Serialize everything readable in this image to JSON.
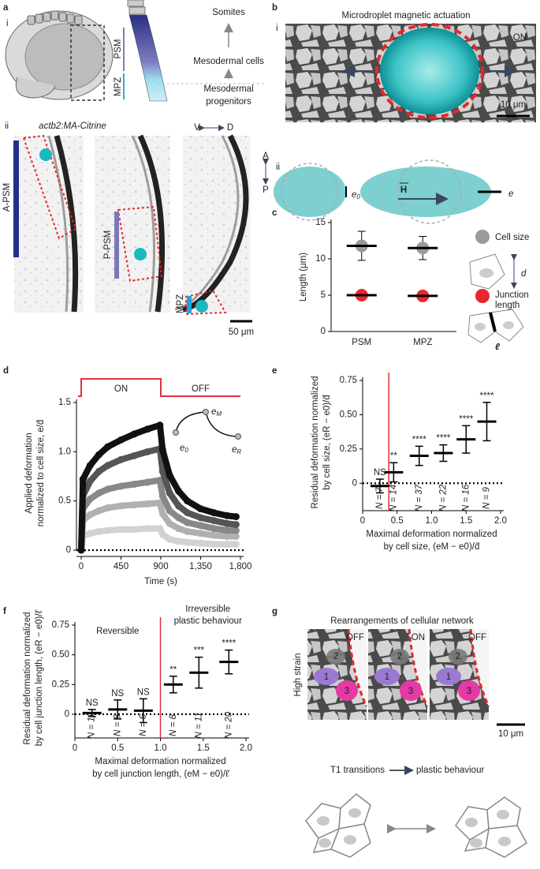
{
  "panel_a": {
    "label": "a",
    "sub_i": "i",
    "psm": "PSM",
    "mpz": "MPZ",
    "somites": "Somites",
    "mesodermal_cells": "Mesodermal cells",
    "progenitors": [
      "Mesodermal",
      "progenitors"
    ],
    "sub_ii": "ii",
    "transgene": "actb2:MA-Citrine",
    "axis_vd": [
      "V",
      "D"
    ],
    "axis_ap": [
      "A",
      "P"
    ],
    "regions": [
      "A-PSM",
      "P-PSM",
      "MPZ"
    ],
    "scale": "50 μm"
  },
  "panel_b": {
    "label": "b",
    "title": "Microdroplet magnetic actuation",
    "sub_i": "i",
    "state": "ON",
    "scale": "10 μm",
    "sub_ii": "ii",
    "e0": {
      "base": "e",
      "sub": "0"
    },
    "field": "H",
    "e": "e"
  },
  "panel_g": {
    "label": "g",
    "title": "Rearrangements of cellular network",
    "states": [
      "OFF",
      "ON",
      "OFF"
    ],
    "strain": "High strain",
    "cells": [
      "2",
      "1",
      "3"
    ],
    "scale": "10 μm",
    "t1": "T1 transitions",
    "result": "plastic behaviour"
  },
  "chart_data": [
    {
      "panel_label": "c",
      "type": "dot",
      "y_label": "Length (μm)",
      "categories": [
        "PSM",
        "MPZ"
      ],
      "series": [
        {
          "name": "Cell size",
          "color": "#9a9a9a",
          "values": [
            11.8,
            11.5
          ],
          "errors": [
            2.0,
            1.6
          ]
        },
        {
          "name": "Junction length",
          "color": "#e8262b",
          "values": [
            5.0,
            4.9
          ],
          "errors": [
            0.4,
            0.4
          ]
        }
      ],
      "legend_symbols": [
        "d",
        "ℓ"
      ],
      "ylim": [
        0,
        15
      ],
      "yticks": [
        0,
        5,
        10,
        15
      ]
    },
    {
      "panel_label": "d",
      "type": "line",
      "x_label": "Time (s)",
      "y_label": [
        "Applied deformation",
        "normalized to cell size, e/d̄"
      ],
      "phases": [
        "ON",
        "OFF"
      ],
      "on_period": [
        0,
        900
      ],
      "inset_labels": [
        {
          "base": "e",
          "sub": "0"
        },
        {
          "base": "e",
          "sub": "M"
        },
        {
          "base": "e",
          "sub": "R"
        }
      ],
      "x": [
        0,
        20,
        100,
        200,
        300,
        450,
        600,
        750,
        890,
        920,
        1000,
        1100,
        1200,
        1350,
        1500,
        1650,
        1750
      ],
      "series": [
        {
          "color": "#111111",
          "values": [
            0,
            0.72,
            0.86,
            0.97,
            1.05,
            1.12,
            1.18,
            1.23,
            1.27,
            1.02,
            0.76,
            0.6,
            0.5,
            0.42,
            0.38,
            0.35,
            0.34
          ]
        },
        {
          "color": "#555555",
          "values": [
            0,
            0.55,
            0.7,
            0.8,
            0.86,
            0.92,
            0.96,
            1.0,
            1.03,
            0.8,
            0.58,
            0.45,
            0.38,
            0.33,
            0.3,
            0.27,
            0.26
          ]
        },
        {
          "color": "#888888",
          "values": [
            0,
            0.42,
            0.52,
            0.58,
            0.62,
            0.65,
            0.67,
            0.69,
            0.71,
            0.55,
            0.4,
            0.33,
            0.28,
            0.25,
            0.22,
            0.2,
            0.2
          ]
        },
        {
          "color": "#b0b0b0",
          "values": [
            0,
            0.3,
            0.36,
            0.4,
            0.43,
            0.45,
            0.46,
            0.47,
            0.48,
            0.37,
            0.27,
            0.22,
            0.19,
            0.17,
            0.15,
            0.14,
            0.14
          ]
        },
        {
          "color": "#d2d2d2",
          "values": [
            0,
            0.14,
            0.17,
            0.19,
            0.2,
            0.21,
            0.21,
            0.22,
            0.22,
            0.16,
            0.11,
            0.09,
            0.08,
            0.07,
            0.06,
            0.06,
            0.06
          ]
        }
      ],
      "xlim": [
        0,
        1800
      ],
      "xticks": [
        0,
        450,
        900,
        {
          "value": 1350,
          "label": "1,350"
        },
        {
          "value": 1800,
          "label": "1,800"
        }
      ],
      "ylim": [
        0,
        1.5
      ],
      "yticks": [
        0,
        0.5,
        {
          "value": 1,
          "label": "1.0"
        },
        1.5
      ]
    },
    {
      "panel_label": "e",
      "type": "scatter",
      "x_label": [
        "Maximal deformation normalized",
        "by cell size, (eM − e0)/d̄"
      ],
      "y_label": [
        "Residual deformation normalized",
        "by cell size, (eR − e0)/d̄"
      ],
      "x": [
        0.25,
        0.45,
        0.82,
        1.17,
        1.5,
        1.8
      ],
      "values": [
        -0.02,
        0.08,
        0.2,
        0.22,
        0.32,
        0.45
      ],
      "errors": [
        0.05,
        0.07,
        0.07,
        0.06,
        0.1,
        0.14
      ],
      "significance": [
        "NS",
        "**",
        "****",
        "****",
        "****",
        "****"
      ],
      "n_labels": [
        "N = 7",
        "N = 14",
        "N = 37",
        "N = 22",
        "N = 16",
        "N = 9"
      ],
      "threshold": 0.38,
      "color": "#e0303a",
      "xlim": [
        0,
        2
      ],
      "xticks": [
        0,
        0.5,
        {
          "value": 1,
          "label": "1.0"
        },
        1.5,
        {
          "value": 2,
          "label": "2.0"
        }
      ],
      "ylim": [
        -0.2,
        0.75
      ],
      "yticks": [
        0,
        0.25,
        {
          "value": 0.5,
          "label": "0.50"
        },
        0.75
      ]
    },
    {
      "panel_label": "f",
      "type": "scatter",
      "x_label": [
        "Maximal deformation normalized",
        "by cell junction length, (eM − e0)/ℓ̄"
      ],
      "y_label": [
        "Residual deformation normalized",
        "by cell junction length, (eR − e0)/ℓ̄"
      ],
      "regions": [
        "Reversible",
        [
          "Irreversible",
          "plastic behaviour"
        ]
      ],
      "x": [
        0.2,
        0.5,
        0.8,
        1.15,
        1.45,
        1.8
      ],
      "values": [
        0.01,
        0.04,
        0.03,
        0.25,
        0.35,
        0.44
      ],
      "errors": [
        0.03,
        0.08,
        0.1,
        0.07,
        0.13,
        0.1
      ],
      "significance": [
        "NS",
        "NS",
        "NS",
        "**",
        "***",
        "****"
      ],
      "n_labels": [
        "N = 19",
        "N = 8",
        "N = 6",
        "N = 8",
        "N = 11",
        "N = 20"
      ],
      "threshold": 1.0,
      "color": "#e0303a",
      "xlim": [
        0,
        2
      ],
      "xticks": [
        0,
        0.5,
        {
          "value": 1,
          "label": "1.0"
        },
        1.5,
        {
          "value": 2,
          "label": "2.0"
        }
      ],
      "ylim": [
        -0.2,
        0.75
      ],
      "yticks": [
        0,
        0.25,
        {
          "value": 0.5,
          "label": "0.50"
        },
        0.75
      ]
    }
  ]
}
